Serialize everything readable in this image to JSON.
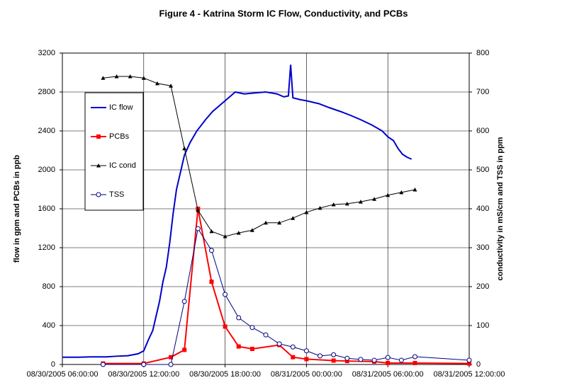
{
  "chart_data": {
    "type": "line",
    "title": "Figure 4 - Katrina Storm IC Flow, Conductivity, and PCBs",
    "ylabel": "flow in gpm and PCBs in ppb",
    "y2label": "conductivity in mS/cm and TSS in ppm",
    "xlim": [
      "2005-08-30T06:00",
      "2005-08-31T12:00"
    ],
    "xticks": [
      {
        "value": "2005-08-30T06:00",
        "label": "08/30/2005 06:00:00"
      },
      {
        "value": "2005-08-30T12:00",
        "label": "08/30/2005 12:00:00"
      },
      {
        "value": "2005-08-30T18:00",
        "label": "08/30/2005 18:00:00"
      },
      {
        "value": "2005-08-31T00:00",
        "label": "08/31/2005 00:00:00"
      },
      {
        "value": "2005-08-31T06:00",
        "label": "08/31/2005 06:00:00"
      },
      {
        "value": "2005-08-31T12:00",
        "label": "08/31/2005 12:00:00"
      }
    ],
    "ylim": [
      0,
      3200
    ],
    "yticks": [
      0,
      400,
      800,
      1200,
      1600,
      2000,
      2400,
      2800,
      3200
    ],
    "y2lim": [
      0,
      800
    ],
    "y2ticks": [
      0,
      100,
      200,
      300,
      400,
      500,
      600,
      700,
      800
    ],
    "grid": true,
    "legend": "upper left",
    "series": [
      {
        "name": "IC flow",
        "color": "#0000cc",
        "marker": "none",
        "x": [
          "2005-08-30T06:00",
          "2005-08-30T07:10",
          "2005-08-30T08:10",
          "2005-08-30T09:15",
          "2005-08-30T10:00",
          "2005-08-30T10:50",
          "2005-08-30T11:35",
          "2005-08-30T12:00",
          "2005-08-30T12:20",
          "2005-08-30T12:40",
          "2005-08-30T12:55",
          "2005-08-30T13:10",
          "2005-08-30T13:25",
          "2005-08-30T13:40",
          "2005-08-30T13:55",
          "2005-08-30T14:10",
          "2005-08-30T14:25",
          "2005-08-30T14:45",
          "2005-08-30T15:00",
          "2005-08-30T15:25",
          "2005-08-30T15:55",
          "2005-08-30T16:35",
          "2005-08-30T17:05",
          "2005-08-30T17:35",
          "2005-08-30T18:00",
          "2005-08-30T18:25",
          "2005-08-30T18:45",
          "2005-08-30T19:25",
          "2005-08-30T20:10",
          "2005-08-30T21:00",
          "2005-08-30T21:50",
          "2005-08-30T22:20",
          "2005-08-30T22:40",
          "2005-08-30T22:50",
          "2005-08-30T23:00",
          "2005-08-30T23:35",
          "2005-08-31T00:00",
          "2005-08-31T00:55",
          "2005-08-31T01:40",
          "2005-08-31T02:30",
          "2005-08-31T03:15",
          "2005-08-31T04:05",
          "2005-08-31T04:50",
          "2005-08-31T05:35",
          "2005-08-31T06:00",
          "2005-08-31T06:25",
          "2005-08-31T06:45",
          "2005-08-31T07:05",
          "2005-08-31T07:25",
          "2005-08-31T07:45"
        ],
        "values": [
          75,
          75,
          78,
          78,
          85,
          90,
          110,
          140,
          250,
          350,
          500,
          650,
          850,
          1000,
          1250,
          1550,
          1800,
          2000,
          2150,
          2280,
          2400,
          2520,
          2600,
          2660,
          2710,
          2760,
          2800,
          2780,
          2790,
          2800,
          2780,
          2750,
          2760,
          3080,
          2740,
          2720,
          2710,
          2680,
          2640,
          2600,
          2560,
          2510,
          2460,
          2400,
          2340,
          2300,
          2220,
          2160,
          2130,
          2110
        ]
      },
      {
        "name": "PCBs",
        "color": "#ff0000",
        "marker": "square",
        "x": [
          "2005-08-30T09:00",
          "2005-08-30T12:00",
          "2005-08-30T14:00",
          "2005-08-30T15:00",
          "2005-08-30T16:00",
          "2005-08-30T17:00",
          "2005-08-30T18:00",
          "2005-08-30T19:00",
          "2005-08-30T20:00",
          "2005-08-30T22:00",
          "2005-08-30T23:00",
          "2005-08-31T00:00",
          "2005-08-31T02:00",
          "2005-08-31T03:00",
          "2005-08-31T05:00",
          "2005-08-31T06:00",
          "2005-08-31T08:00",
          "2005-08-31T12:00"
        ],
        "values": [
          10,
          10,
          75,
          150,
          1600,
          850,
          390,
          185,
          160,
          200,
          75,
          55,
          40,
          35,
          30,
          15,
          15,
          10
        ]
      },
      {
        "name": "IC cond",
        "color": "#000000",
        "marker": "triangle",
        "axis": "y2",
        "x": [
          "2005-08-30T09:00",
          "2005-08-30T10:00",
          "2005-08-30T11:00",
          "2005-08-30T12:00",
          "2005-08-30T13:00",
          "2005-08-30T14:00",
          "2005-08-30T15:00",
          "2005-08-30T16:00",
          "2005-08-30T17:00",
          "2005-08-30T18:00",
          "2005-08-30T19:00",
          "2005-08-30T20:00",
          "2005-08-30T21:00",
          "2005-08-30T22:00",
          "2005-08-30T23:00",
          "2005-08-31T00:00",
          "2005-08-31T01:00",
          "2005-08-31T02:00",
          "2005-08-31T03:00",
          "2005-08-31T04:00",
          "2005-08-31T05:00",
          "2005-08-31T06:00",
          "2005-08-31T07:00",
          "2005-08-31T08:00"
        ],
        "values": [
          736,
          740,
          740,
          736,
          722,
          716,
          555,
          396,
          342,
          329,
          338,
          345,
          364,
          364,
          376,
          391,
          402,
          411,
          413,
          418,
          425,
          435,
          442,
          449
        ]
      },
      {
        "name": "TSS",
        "color": "#00007f",
        "marker": "circle",
        "axis": "y2",
        "x": [
          "2005-08-30T09:00",
          "2005-08-30T12:00",
          "2005-08-30T14:00",
          "2005-08-30T15:00",
          "2005-08-30T16:00",
          "2005-08-30T17:00",
          "2005-08-30T18:00",
          "2005-08-30T19:00",
          "2005-08-30T20:00",
          "2005-08-30T21:00",
          "2005-08-30T22:00",
          "2005-08-30T23:00",
          "2005-08-31T00:00",
          "2005-08-31T01:00",
          "2005-08-31T02:00",
          "2005-08-31T03:00",
          "2005-08-31T04:00",
          "2005-08-31T05:00",
          "2005-08-31T06:00",
          "2005-08-31T07:00",
          "2005-08-31T08:00",
          "2005-08-31T12:00"
        ],
        "values": [
          0,
          0,
          0,
          162,
          349,
          293,
          180,
          120,
          95,
          76,
          53,
          45,
          35,
          22,
          25,
          16,
          13,
          11,
          18,
          11,
          20,
          11
        ]
      }
    ]
  }
}
